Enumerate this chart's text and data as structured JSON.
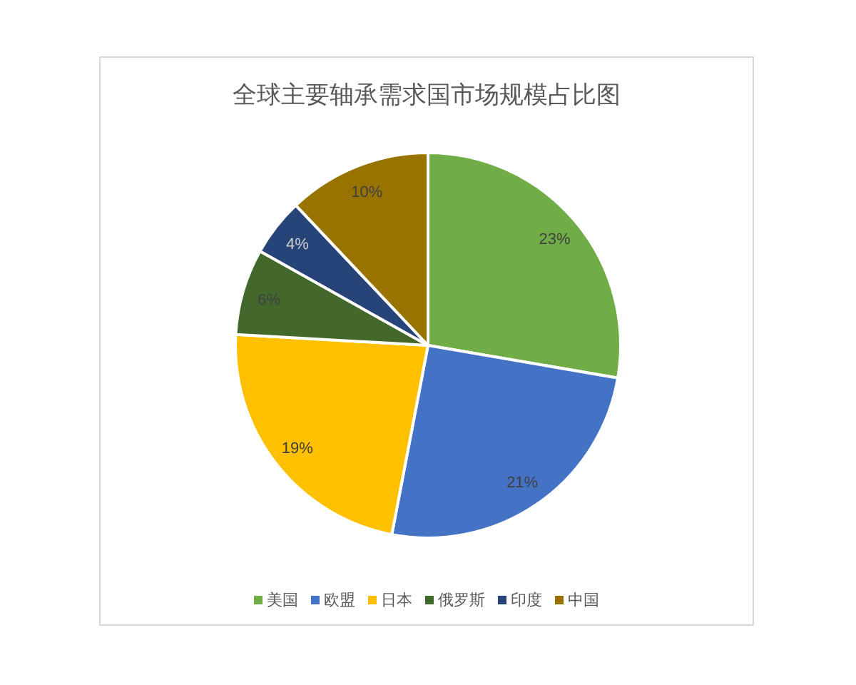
{
  "chart_data": {
    "type": "pie",
    "title": "全球主要轴承需求国市场规模占比图",
    "categories": [
      "美国",
      "欧盟",
      "日本",
      "俄罗斯",
      "印度",
      "中国"
    ],
    "values": [
      23,
      21,
      19,
      6,
      4,
      10
    ],
    "colors": [
      "#70ad47",
      "#4472c4",
      "#ffc000",
      "#43682b",
      "#264478",
      "#997300"
    ],
    "value_labels": [
      "23%",
      "21%",
      "19%",
      "6%",
      "4%",
      "10%"
    ],
    "legend": "bottom"
  }
}
